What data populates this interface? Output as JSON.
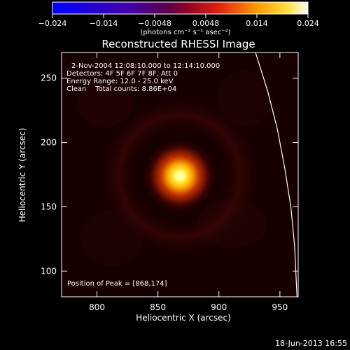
{
  "colorbar": {
    "ticks": [
      "−0.024",
      "−0.014",
      "−0.0048",
      "0.0048",
      "0.014",
      "0.024"
    ],
    "unit_label": "(photons cm⁻² s⁻¹ asec⁻²)"
  },
  "annotations": {
    "date_range": "2-Nov-2004 12:08:10.000 to 12:14:10.000",
    "detectors": "Detectors: 4F 5F 6F 7F 8F, Att 0",
    "energy": "Energy Range: 12.0 - 25.0 keV",
    "clean": "Clean    Total counts: 8.86E+04",
    "peak": "Position of Peak = [868,174]"
  },
  "timestamp": "18-Jun-2013 16:55",
  "colors": {
    "background": "#000000",
    "text": "#ffffff"
  },
  "chart_data": {
    "type": "heatmap",
    "title": "Reconstructed RHESSI Image",
    "xlabel": "Heliocentric X (arcsec)",
    "ylabel": "Heliocentric Y (arcsec)",
    "xlim": [
      771,
      965
    ],
    "ylim": [
      80,
      270
    ],
    "xticks": [
      800,
      850,
      900,
      950
    ],
    "yticks": [
      100,
      150,
      200,
      250
    ],
    "colormap_range": [
      -0.024,
      0.024
    ],
    "colormap": "hot (blue-purple-red-yellow-white)",
    "peak": {
      "x": 868,
      "y": 174
    },
    "limb_curve": [
      [
        930,
        270
      ],
      [
        940,
        240
      ],
      [
        948,
        210
      ],
      [
        954,
        180
      ],
      [
        959,
        150
      ],
      [
        962,
        120
      ],
      [
        964,
        80
      ]
    ]
  }
}
